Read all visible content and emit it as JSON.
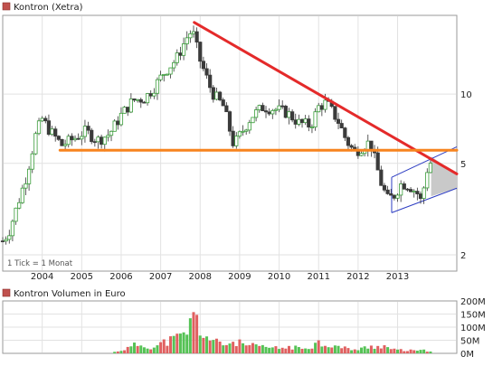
{
  "chart_data": [
    {
      "type": "candlestick",
      "title": "Kontron (Xetra)",
      "note": "1 Tick = 1 Monat",
      "y_scale": "log",
      "ylim": [
        1.7,
        22
      ],
      "y_ticks": [
        {
          "value": 10,
          "label": "10"
        },
        {
          "value": 5,
          "label": "5"
        },
        {
          "value": 2,
          "label": "2"
        }
      ],
      "x_ticks": [
        {
          "value": 2004.0,
          "label": "2004"
        },
        {
          "value": 2005.0,
          "label": "2005"
        },
        {
          "value": 2006.0,
          "label": "2006"
        },
        {
          "value": 2007.0,
          "label": "2007"
        },
        {
          "value": 2008.0,
          "label": "2008"
        },
        {
          "value": 2009.0,
          "label": "2009"
        },
        {
          "value": 2010.0,
          "label": "2010"
        },
        {
          "value": 2011.0,
          "label": "2011"
        },
        {
          "value": 2012.0,
          "label": "2012"
        },
        {
          "value": 2013.0,
          "label": "2013"
        }
      ],
      "xlim": [
        2003.0,
        2014.5
      ],
      "anchors": [
        [
          2003.0,
          2.3
        ],
        [
          2003.15,
          2.5
        ],
        [
          2003.35,
          3.2
        ],
        [
          2003.6,
          4.4
        ],
        [
          2003.85,
          6.8
        ],
        [
          2004.0,
          7.8
        ],
        [
          2004.2,
          6.9
        ],
        [
          2004.5,
          6.0
        ],
        [
          2004.8,
          6.4
        ],
        [
          2005.1,
          6.9
        ],
        [
          2005.4,
          6.3
        ],
        [
          2005.7,
          6.7
        ],
        [
          2006.0,
          8.1
        ],
        [
          2006.3,
          9.4
        ],
        [
          2006.6,
          9.6
        ],
        [
          2006.85,
          10.8
        ],
        [
          2007.1,
          12.5
        ],
        [
          2007.4,
          14.2
        ],
        [
          2007.65,
          17.5
        ],
        [
          2007.8,
          19.0
        ],
        [
          2008.0,
          14.0
        ],
        [
          2008.3,
          10.2
        ],
        [
          2008.6,
          8.8
        ],
        [
          2008.85,
          6.0
        ],
        [
          2009.0,
          6.6
        ],
        [
          2009.3,
          8.0
        ],
        [
          2009.6,
          8.8
        ],
        [
          2009.9,
          8.6
        ],
        [
          2010.2,
          8.3
        ],
        [
          2010.5,
          7.5
        ],
        [
          2010.8,
          7.3
        ],
        [
          2011.0,
          8.8
        ],
        [
          2011.2,
          9.2
        ],
        [
          2011.5,
          7.6
        ],
        [
          2011.7,
          6.3
        ],
        [
          2011.9,
          5.6
        ],
        [
          2012.1,
          5.9
        ],
        [
          2012.3,
          6.2
        ],
        [
          2012.45,
          5.0
        ],
        [
          2012.6,
          4.0
        ],
        [
          2012.75,
          3.5
        ],
        [
          2012.9,
          3.6
        ],
        [
          2013.1,
          4.1
        ],
        [
          2013.3,
          4.0
        ],
        [
          2013.5,
          3.7
        ],
        [
          2013.6,
          3.4
        ],
        [
          2013.75,
          4.7
        ],
        [
          2013.85,
          5.1
        ]
      ],
      "lines": [
        {
          "name": "downtrend",
          "color": "#e42a2a",
          "from": [
            2007.85,
            20.5
          ],
          "to": [
            2014.5,
            4.5
          ]
        },
        {
          "name": "support",
          "color": "#f7841e",
          "from": [
            2004.45,
            5.7
          ],
          "to": [
            2014.5,
            5.7
          ]
        }
      ],
      "channel": {
        "color": "#2d3dc2",
        "lower": [
          [
            2012.85,
            3.05
          ],
          [
            2014.5,
            3.9
          ]
        ],
        "upper": [
          [
            2012.85,
            4.35
          ],
          [
            2014.5,
            5.9
          ]
        ]
      },
      "forecast_fill": {
        "color": "#c9c9c9",
        "points": [
          [
            2013.85,
            5.35
          ],
          [
            2014.5,
            4.5
          ],
          [
            2014.5,
            3.9
          ],
          [
            2013.85,
            3.6
          ]
        ]
      },
      "candle_colors": {
        "up": "#3a9c3a",
        "down": "#3b3b3b"
      }
    },
    {
      "type": "bar",
      "title": "Kontron Volumen in Euro",
      "ylim": [
        0,
        200
      ],
      "y_ticks": [
        "0M",
        "50M",
        "100M",
        "150M",
        "200M"
      ],
      "x_tick_positions": [
        2004,
        2005,
        2006,
        2007,
        2008,
        2009,
        2010,
        2011,
        2012,
        2013
      ],
      "volume_points": [
        [
          2005.8,
          4
        ],
        [
          2006.2,
          22
        ],
        [
          2006.4,
          36
        ],
        [
          2006.6,
          30
        ],
        [
          2006.85,
          24
        ],
        [
          2007.05,
          42
        ],
        [
          2007.3,
          55
        ],
        [
          2007.5,
          65
        ],
        [
          2007.7,
          95
        ],
        [
          2007.85,
          155
        ],
        [
          2008.0,
          95
        ],
        [
          2008.15,
          70
        ],
        [
          2008.3,
          48
        ],
        [
          2008.6,
          36
        ],
        [
          2008.9,
          46
        ],
        [
          2009.1,
          34
        ],
        [
          2009.4,
          28
        ],
        [
          2009.7,
          24
        ],
        [
          2010.0,
          20
        ],
        [
          2010.3,
          26
        ],
        [
          2010.55,
          18
        ],
        [
          2010.8,
          30
        ],
        [
          2011.0,
          44
        ],
        [
          2011.1,
          38
        ],
        [
          2011.3,
          34
        ],
        [
          2011.6,
          22
        ],
        [
          2011.8,
          18
        ],
        [
          2012.0,
          14
        ],
        [
          2012.2,
          24
        ],
        [
          2012.5,
          30
        ],
        [
          2012.7,
          28
        ],
        [
          2012.9,
          14
        ],
        [
          2013.2,
          12
        ],
        [
          2013.5,
          10
        ],
        [
          2013.85,
          12
        ]
      ],
      "bar_colors": {
        "up": "#55c255",
        "down": "#e06060"
      }
    }
  ]
}
